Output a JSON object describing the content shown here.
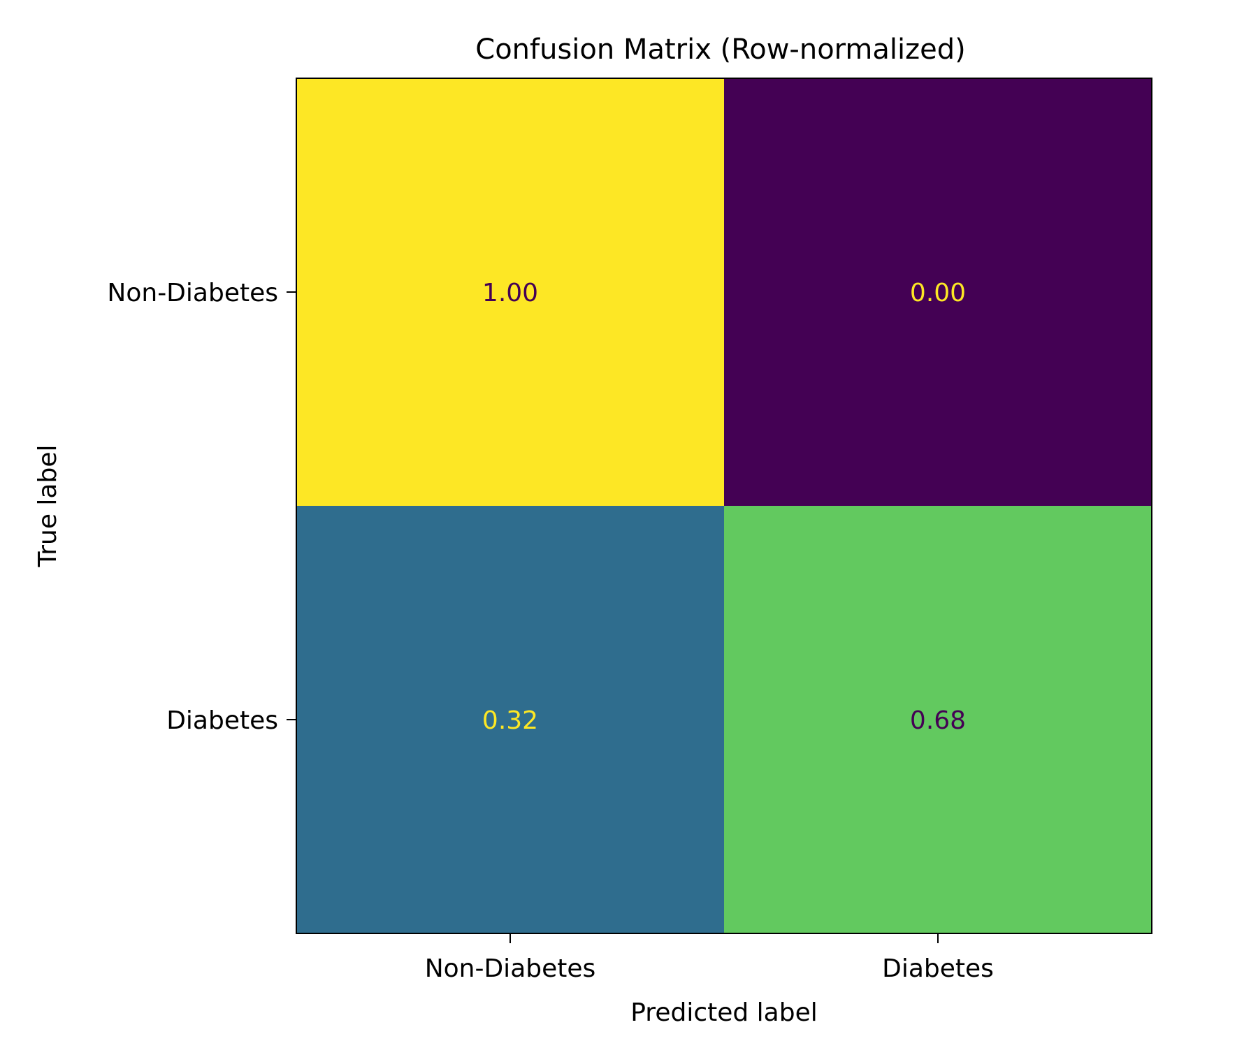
{
  "chart_data": {
    "type": "heatmap",
    "title": "Confusion Matrix (Row-normalized)",
    "xlabel": "Predicted label",
    "ylabel": "True label",
    "x_categories": [
      "Non-Diabetes",
      "Diabetes"
    ],
    "y_categories": [
      "Non-Diabetes",
      "Diabetes"
    ],
    "values": [
      [
        1.0,
        0.0
      ],
      [
        0.32,
        0.68
      ]
    ],
    "value_labels": [
      [
        "1.00",
        "0.00"
      ],
      [
        "0.32",
        "0.68"
      ]
    ],
    "colormap": "viridis",
    "vmin": 0,
    "vmax": 1,
    "colorbar": false,
    "grid": false
  },
  "colors": {
    "viridis_low": "#440154",
    "viridis_high": "#fde725",
    "text_on_light": "#440154",
    "text_on_dark": "#fde725"
  }
}
